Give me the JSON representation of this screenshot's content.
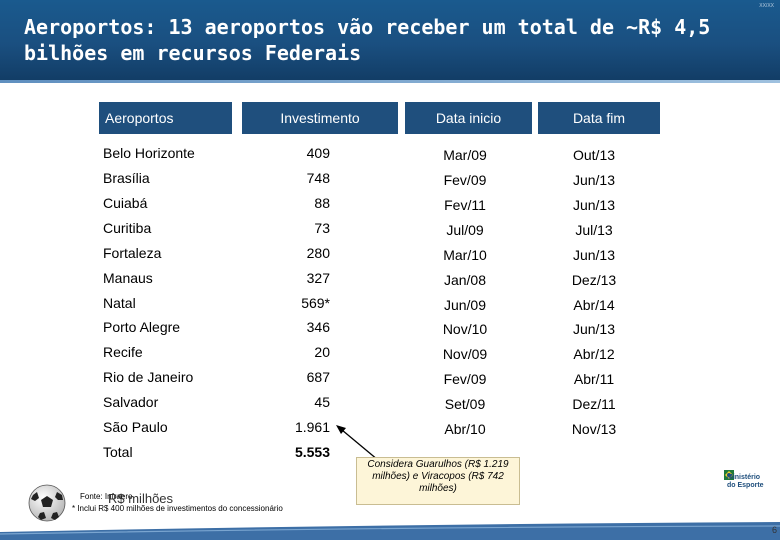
{
  "header": {
    "title": "Aeroportos: 13 aeroportos vão receber um total de ~R$ 4,5 bilhões em recursos Federais",
    "code": "XX/XX"
  },
  "table": {
    "columns": [
      "Aeroportos",
      "Investimento",
      "Data inicio",
      "Data fim"
    ],
    "rows": [
      {
        "name": "Belo Horizonte",
        "investment": "409",
        "start": "Mar/09",
        "end": "Out/13"
      },
      {
        "name": "Brasília",
        "investment": "748",
        "start": "Fev/09",
        "end": "Jun/13"
      },
      {
        "name": "Cuiabá",
        "investment": "88",
        "start": "Fev/11",
        "end": "Jun/13"
      },
      {
        "name": "Curitiba",
        "investment": "73",
        "start": "Jul/09",
        "end": "Jul/13"
      },
      {
        "name": "Fortaleza",
        "investment": "280",
        "start": "Mar/10",
        "end": "Jun/13"
      },
      {
        "name": "Manaus",
        "investment": "327",
        "start": "Jan/08",
        "end": "Dez/13"
      },
      {
        "name": "Natal",
        "investment": "569*",
        "start": "Jun/09",
        "end": "Abr/14"
      },
      {
        "name": "Porto Alegre",
        "investment": "346",
        "start": "Nov/10",
        "end": "Jun/13"
      },
      {
        "name": "Recife",
        "investment": "20",
        "start": "Nov/09",
        "end": "Abr/12"
      },
      {
        "name": "Rio de Janeiro",
        "investment": "687",
        "start": "Fev/09",
        "end": "Abr/11"
      },
      {
        "name": "Salvador",
        "investment": "45",
        "start": "Set/09",
        "end": "Dez/11"
      },
      {
        "name": "São Paulo",
        "investment": "1.961",
        "start": "Abr/10",
        "end": "Nov/13"
      }
    ],
    "total": {
      "label": "Total",
      "investment": "5.553"
    }
  },
  "callout": {
    "text": "Considera Guarulhos (R$ 1.219 milhões) e Viracopos (R$ 742 milhões)"
  },
  "footer": {
    "source": "Fonte: Infraero",
    "unit": "R$ milhões",
    "note": "* Inclui R$ 400 milhões de investimentos do concessionário",
    "logo_line1": "Ministério",
    "logo_line2": "do Esporte",
    "page_number": "6"
  },
  "colors": {
    "header": "#1a5088",
    "column_header": "#1f4f7d",
    "callout_bg": "#fdf5d8",
    "bottom_bar": "#3d6fa6"
  },
  "icons": [
    "soccer-ball-icon",
    "callout-arrow-icon",
    "ministry-logo-icon"
  ]
}
